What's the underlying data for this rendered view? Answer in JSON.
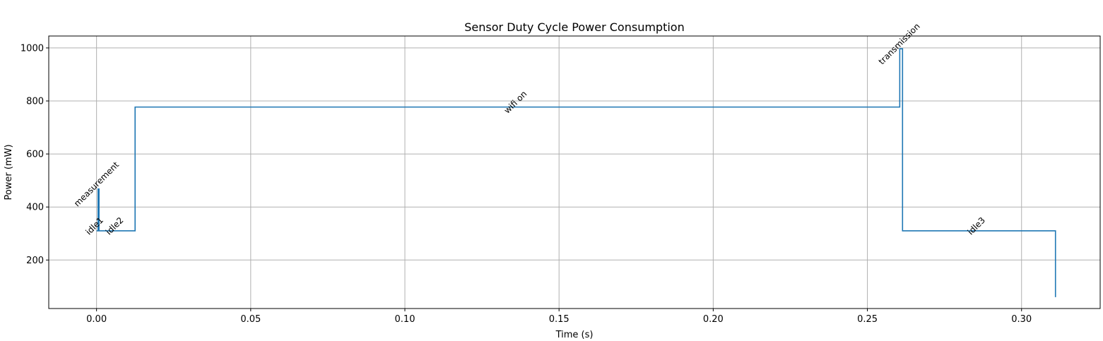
{
  "chart_data": {
    "type": "line",
    "step": true,
    "title": "Sensor Duty Cycle Power Consumption",
    "xlabel": "Time (s)",
    "ylabel": "Power (mW)",
    "xlim": [
      -0.0155,
      0.3255
    ],
    "ylim": [
      17,
      1045
    ],
    "xticks": [
      0.0,
      0.05,
      0.1,
      0.15,
      0.2,
      0.25,
      0.3
    ],
    "xtick_labels": [
      "0.00",
      "0.05",
      "0.10",
      "0.15",
      "0.20",
      "0.25",
      "0.30"
    ],
    "yticks": [
      200,
      400,
      600,
      800,
      1000
    ],
    "ytick_labels": [
      "200",
      "400",
      "600",
      "800",
      "1000"
    ],
    "grid": true,
    "series_color": "#1f77b4",
    "series": [
      {
        "x": [
          0.0,
          0.0005,
          0.0005,
          0.0008,
          0.0008,
          0.0125,
          0.0125,
          0.2605,
          0.2605,
          0.2614,
          0.2614,
          0.311,
          0.311
        ],
        "y": [
          310,
          310,
          468,
          468,
          310,
          310,
          777,
          777,
          997,
          997,
          310,
          310,
          60
        ]
      }
    ],
    "annotations": [
      {
        "text": "idle1",
        "x": 0.0,
        "y": 310
      },
      {
        "text": "measurement",
        "x": 0.0006,
        "y": 468
      },
      {
        "text": "idle2",
        "x": 0.0065,
        "y": 310
      },
      {
        "text": "wifi on",
        "x": 0.1365,
        "y": 777
      },
      {
        "text": "transmission",
        "x": 0.261,
        "y": 997
      },
      {
        "text": "idle3",
        "x": 0.286,
        "y": 310
      }
    ]
  }
}
